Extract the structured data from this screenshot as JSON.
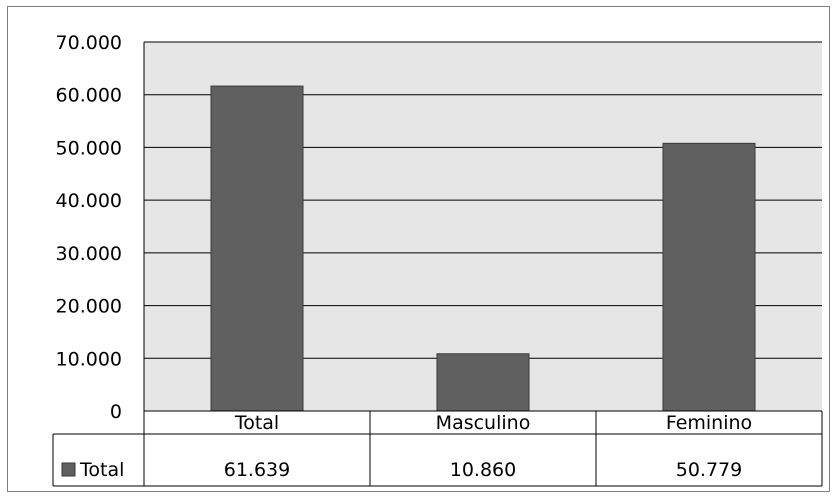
{
  "chart_data": {
    "type": "bar",
    "categories": [
      "Total",
      "Masculino",
      "Feminino"
    ],
    "series": [
      {
        "name": "Total",
        "values": [
          61639,
          10860,
          50779
        ],
        "color": "#606060"
      }
    ],
    "value_labels": [
      "61.639",
      "10.860",
      "50.779"
    ],
    "y_ticks": [
      "0",
      "10.000",
      "20.000",
      "30.000",
      "40.000",
      "50.000",
      "60.000",
      "70.000"
    ],
    "ylim": [
      0,
      70000
    ],
    "y_step": 10000,
    "grid": true,
    "legend": "data-table",
    "plot_background": "#e6e6e6",
    "bar_color": "#606060",
    "title": "",
    "xlabel": "",
    "ylabel": ""
  }
}
